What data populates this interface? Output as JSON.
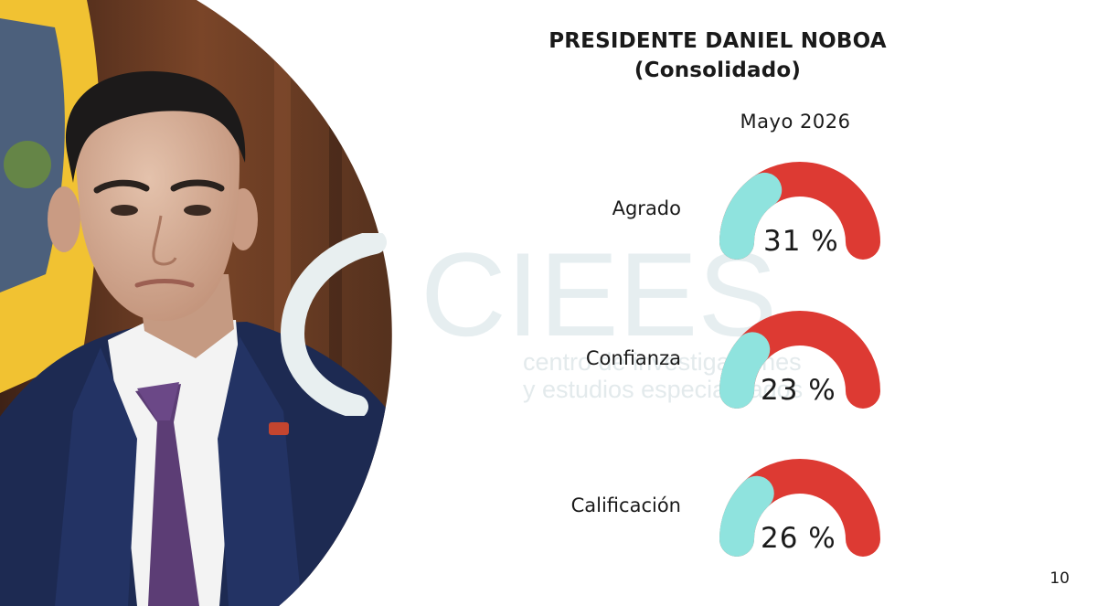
{
  "colors": {
    "accent_red": "#dd3a33",
    "accent_teal": "#8fe3de",
    "suit_navy": "#1d2a52",
    "tie_purple": "#5c3d75",
    "flag_yellow": "#f1c232",
    "wood_brown": "#6e3f23"
  },
  "slide": {
    "title_line1": "PRESIDENTE DANIEL  NOBOA",
    "title_line2": "(Consolidado)",
    "period": "Mayo 2026",
    "page_number": "10"
  },
  "watermark": {
    "brand": "CIEES",
    "tagline_line1": "centro de investigaciones",
    "tagline_line2": "y estudios especializados"
  },
  "chart_data": {
    "type": "gauge",
    "title": "PRESIDENTE DANIEL  NOBOA",
    "subtitle": "(Consolidado)",
    "period": "Mayo 2026",
    "unit": "%",
    "range": [
      0,
      100
    ],
    "metrics": [
      {
        "label": "Agrado",
        "value": 31,
        "display": "31 %"
      },
      {
        "label": "Confianza",
        "value": 23,
        "display": "23 %"
      },
      {
        "label": "Calificación",
        "value": 26,
        "display": "26 %"
      }
    ]
  }
}
